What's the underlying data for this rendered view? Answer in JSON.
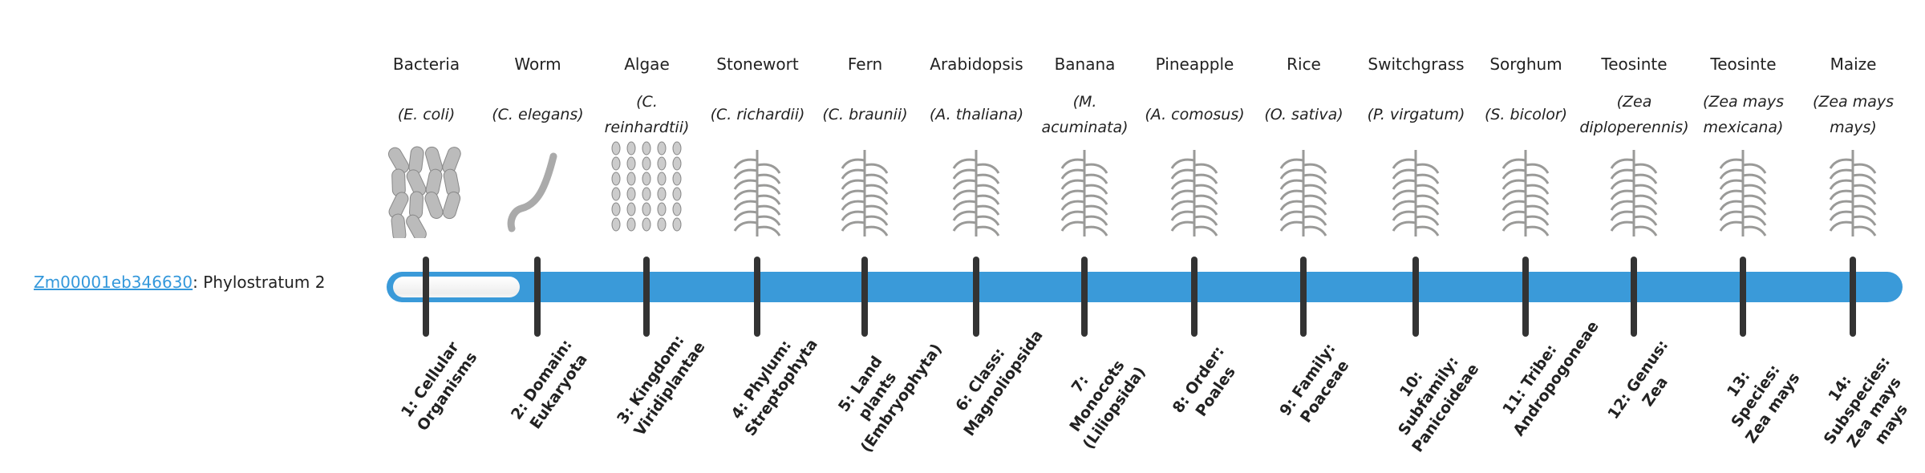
{
  "gene": {
    "id": "Zm00001eb346630",
    "suffix": ": Phylostratum 2",
    "phylostratum": 2
  },
  "colors": {
    "bar": "#3a9ad9",
    "link": "#3498db",
    "tick": "#333333"
  },
  "organisms": [
    {
      "common": "Bacteria",
      "scientific": "(E. coli)",
      "icon": "bacteria-rods-icon"
    },
    {
      "common": "Worm",
      "scientific": "(C. elegans)",
      "icon": "worm-icon"
    },
    {
      "common": "Algae",
      "scientific": "(C. reinhardtii)",
      "icon": "algae-cells-icon"
    },
    {
      "common": "Stonewort",
      "scientific": "(C. richardii)",
      "icon": "stonewort-icon"
    },
    {
      "common": "Fern",
      "scientific": "(C. braunii)",
      "icon": "fern-icon"
    },
    {
      "common": "Arabidopsis",
      "scientific": "(A. thaliana)",
      "icon": "arabidopsis-icon"
    },
    {
      "common": "Banana",
      "scientific": "(M. acuminata)",
      "icon": "banana-plant-icon"
    },
    {
      "common": "Pineapple",
      "scientific": "(A. comosus)",
      "icon": "pineapple-icon"
    },
    {
      "common": "Rice",
      "scientific": "(O. sativa)",
      "icon": "rice-icon"
    },
    {
      "common": "Switchgrass",
      "scientific": "(P. virgatum)",
      "icon": "switchgrass-icon"
    },
    {
      "common": "Sorghum",
      "scientific": "(S. bicolor)",
      "icon": "sorghum-icon"
    },
    {
      "common": "Teosinte",
      "scientific": "(Zea diploperennis)",
      "icon": "teosinte-icon"
    },
    {
      "common": "Teosinte",
      "scientific": "(Zea mays mexicana)",
      "icon": "teosinte-icon"
    },
    {
      "common": "Maize",
      "scientific": "(Zea mays mays)",
      "icon": "maize-icon"
    }
  ],
  "strata": [
    "1: Cellular Organisms",
    "2: Domain: Eukaryota",
    "3: Kingdom: Viridiplantae",
    "4: Phylum: Streptophyta",
    "5: Land plants (Embryophyta)",
    "6: Class: Magnoliopsida",
    "7: Monocots (Liliopsida)",
    "8: Order: Poales",
    "9: Family: Poaceae",
    "10: Subfamily: Panicoideae",
    "11: Tribe: Andropogoneae",
    "12: Genus: Zea",
    "13: Species: Zea mays",
    "14: Subspecies: Zea mays mays"
  ]
}
